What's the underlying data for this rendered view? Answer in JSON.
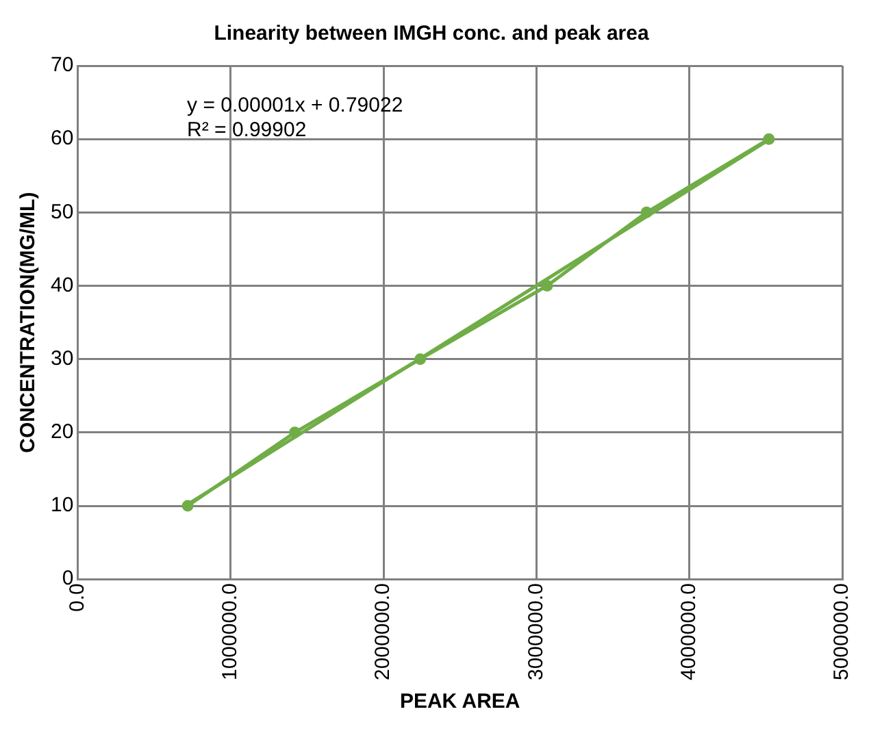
{
  "chart_data": {
    "type": "line",
    "title": "Linearity between IMGH conc. and peak area",
    "xlabel": "PEAK AREA",
    "ylabel": "CONCENTRATION(MG/ML)",
    "series": [
      {
        "color": "#70ad47",
        "x": [
          720000,
          1420000,
          2240000,
          3070000,
          3720000,
          4520000
        ],
        "values": [
          10,
          20,
          30,
          40,
          50,
          60
        ],
        "marker": "circle"
      },
      {
        "type": "line",
        "color": "#70ad47",
        "x": [
          720000,
          4520000
        ],
        "values": [
          10.2,
          59.9
        ],
        "marker": "none"
      }
    ],
    "xlim": [
      0,
      5000000
    ],
    "xticks": [
      {
        "value": 0,
        "label": "0.0"
      },
      {
        "value": 1000000,
        "label": "1000000.0"
      },
      {
        "value": 2000000,
        "label": "2000000.0"
      },
      {
        "value": 3000000,
        "label": "3000000.0"
      },
      {
        "value": 4000000,
        "label": "4000000.0"
      },
      {
        "value": 5000000,
        "label": "5000000.0"
      }
    ],
    "ylim": [
      0,
      70
    ],
    "yticks": [
      0,
      10,
      20,
      30,
      40,
      50,
      60,
      70
    ],
    "annotations": [
      "y = 0.00001x + 0.79022",
      "R² = 0.99902"
    ],
    "grid": true,
    "legend": false,
    "line_style": "solid"
  }
}
